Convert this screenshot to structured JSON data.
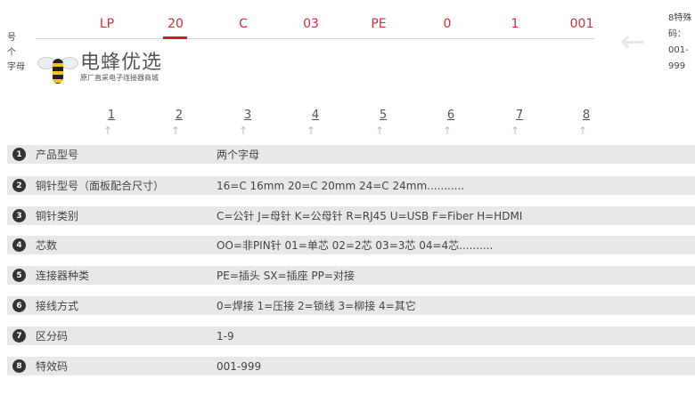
{
  "logo": {
    "title": "电蜂优选",
    "subtitle": "原厂直采电子连接器商城"
  },
  "left_note": [
    "号",
    "个",
    "字母"
  ],
  "codes": [
    "LP",
    "20",
    "C",
    "03",
    "PE",
    "0",
    "1",
    "001"
  ],
  "right_note": [
    "8特殊",
    "码：",
    "001-",
    "999"
  ],
  "positions": [
    "1",
    "2",
    "3",
    "4",
    "5",
    "6",
    "7",
    "8"
  ],
  "rows": [
    {
      "n": "1",
      "label": "产品型号",
      "value": "两个字母"
    },
    {
      "n": "2",
      "label": "铜针型号（面板配合尺寸）",
      "value": "16=C 16mm   20=C 20mm  24=C 24mm..........."
    },
    {
      "n": "3",
      "label": "铜针类别",
      "value": "C=公针   J=母针   K=公母针   R=RJ45 U=USB F=Fiber H=HDMI"
    },
    {
      "n": "4",
      "label": "芯数",
      "value": "OO=非PIN针   01=单芯   02=2芯  03=3芯 04=4芯.........."
    },
    {
      "n": "5",
      "label": "连接器种类",
      "value": "PE=插头      SX=插座      PP=对接"
    },
    {
      "n": "6",
      "label": "接线方式",
      "value": "0=焊接      1=压接    2=锁线   3=柳接      4=其它"
    },
    {
      "n": "7",
      "label": "区分码",
      "value": "1-9"
    },
    {
      "n": "8",
      "label": "特效码",
      "value": "001-999"
    }
  ],
  "colors": {
    "accent": "#c8303a",
    "row_bg": "#e8e8e8"
  }
}
